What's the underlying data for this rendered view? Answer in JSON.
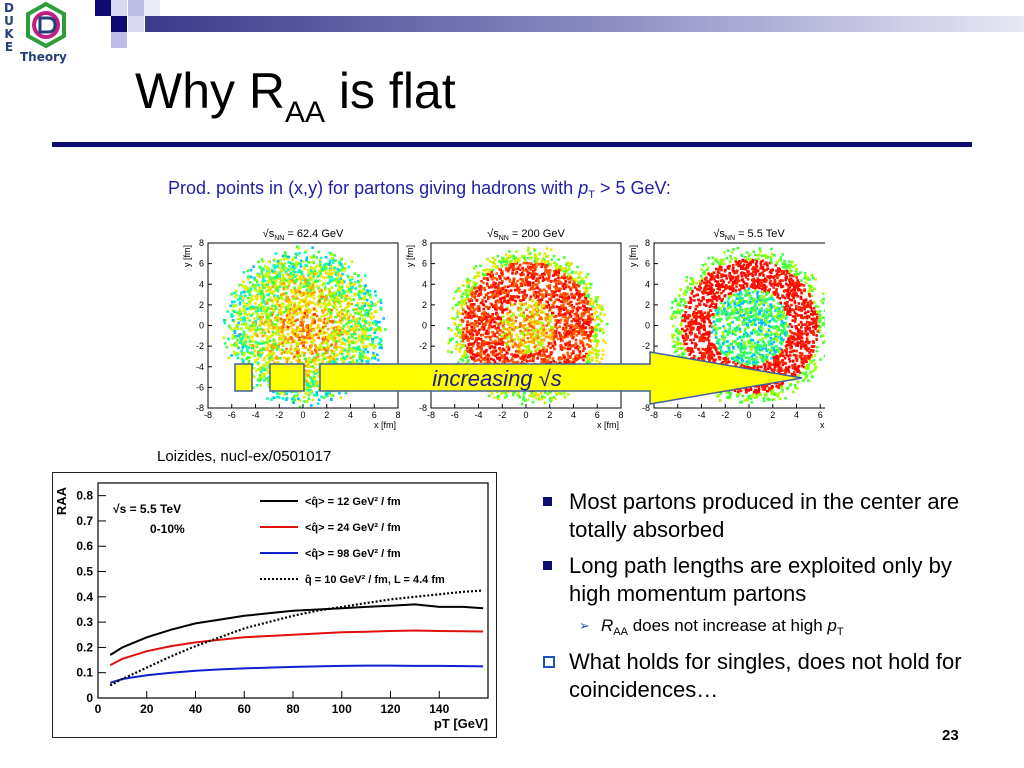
{
  "logo": {
    "vertical_text": [
      "D",
      "U",
      "K",
      "E"
    ],
    "word": "Theory"
  },
  "title": {
    "main": "Why R",
    "subscript": "AA",
    "rest": " is flat"
  },
  "subtitle": {
    "pre": "Prod. points in (x,y) for partons giving hadrons with ",
    "p": "p",
    "sub": "T",
    "post": " > 5 GeV:"
  },
  "citation": "Loizides, nucl-ex/0501017",
  "arrow_label": "increasing √s",
  "scatter_panels": [
    {
      "label": "√s",
      "label_sub": "NN",
      "label_val": " = 62.4 GeV",
      "xlabel": "x [fm]",
      "ylabel": "y [fm]"
    },
    {
      "label": "√s",
      "label_sub": "NN",
      "label_val": " = 200 GeV",
      "xlabel": "x [fm]",
      "ylabel": "y [fm]"
    },
    {
      "label": "√s",
      "label_sub": "NN",
      "label_val": " = 5.5 TeV",
      "xlabel": "x [fm]",
      "ylabel": "y [fm]"
    }
  ],
  "scatter_ticks": [
    "-8",
    "-6",
    "-4",
    "-2",
    "0",
    "2",
    "4",
    "6",
    "8"
  ],
  "bullets": [
    {
      "style": "square",
      "text": "Most partons produced in the center are totally absorbed"
    },
    {
      "style": "square",
      "text": "Long path lengths are exploited only by high momentum partons"
    },
    {
      "style": "arrow",
      "text_pre": "R",
      "text_sub": "AA",
      "text_mid": " does not increase at high ",
      "text_p": "p",
      "text_psub": "T"
    },
    {
      "style": "box",
      "text": "What holds for singles, does not hold for coincidences…"
    }
  ],
  "page_number": "23",
  "colors": {
    "title_rule": "#0b0b73",
    "subtitle": "#1f1fa8",
    "arrow_fill": "#ffff00",
    "bullet": "#0b0b73"
  },
  "chart_data": [
    {
      "type": "scatter",
      "title": "",
      "panels": [
        "√sNN = 62.4 GeV",
        "√sNN = 200 GeV",
        "√sNN = 5.5 TeV"
      ],
      "xlabel": "x [fm]",
      "ylabel": "y [fm]",
      "xlim": [
        -8,
        8
      ],
      "ylim": [
        -8,
        8
      ]
    },
    {
      "type": "line",
      "xlabel": "pT [GeV]",
      "ylabel": "RAA",
      "xlim": [
        0,
        160
      ],
      "ylim": [
        0,
        0.85
      ],
      "xticks": [
        0,
        20,
        40,
        60,
        80,
        100,
        120,
        140
      ],
      "yticks": [
        0,
        0.1,
        0.2,
        0.3,
        0.4,
        0.5,
        0.6,
        0.7,
        0.8
      ],
      "annotations": [
        "√s = 5.5 TeV",
        "0-10%"
      ],
      "x": [
        5,
        10,
        20,
        30,
        40,
        50,
        60,
        70,
        80,
        90,
        100,
        110,
        120,
        130,
        140,
        150,
        158
      ],
      "series": [
        {
          "name": "<q̂> = 12 GeV² / fm",
          "color": "#000000",
          "dash": "solid",
          "values": [
            0.17,
            0.2,
            0.24,
            0.27,
            0.295,
            0.31,
            0.325,
            0.335,
            0.345,
            0.35,
            0.355,
            0.36,
            0.365,
            0.37,
            0.36,
            0.36,
            0.355
          ]
        },
        {
          "name": "<q̂> = 24 GeV² / fm",
          "color": "#e01010",
          "dash": "solid",
          "values": [
            0.13,
            0.155,
            0.185,
            0.205,
            0.22,
            0.23,
            0.24,
            0.245,
            0.25,
            0.255,
            0.26,
            0.262,
            0.265,
            0.267,
            0.265,
            0.264,
            0.263
          ]
        },
        {
          "name": "<q̂> = 98 GeV² / fm",
          "color": "#1020d0",
          "dash": "solid",
          "values": [
            0.06,
            0.075,
            0.09,
            0.1,
            0.108,
            0.113,
            0.117,
            0.12,
            0.123,
            0.125,
            0.127,
            0.128,
            0.128,
            0.127,
            0.127,
            0.126,
            0.125
          ]
        },
        {
          "name": "q̂ = 10 GeV² / fm, L = 4.4 fm",
          "color": "#000000",
          "dash": "dotted",
          "values": [
            0.05,
            0.075,
            0.12,
            0.165,
            0.205,
            0.24,
            0.275,
            0.3,
            0.325,
            0.345,
            0.36,
            0.375,
            0.39,
            0.4,
            0.41,
            0.42,
            0.425
          ]
        }
      ]
    }
  ]
}
